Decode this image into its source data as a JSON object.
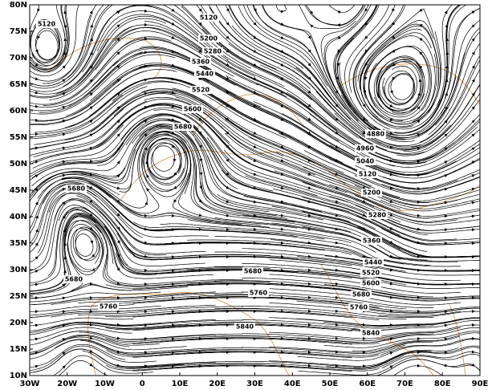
{
  "map": {
    "x_labels": [
      "30W",
      "20W",
      "10W",
      "0",
      "10E",
      "20E",
      "30E",
      "40E",
      "50E",
      "60E",
      "70E",
      "80E",
      "90E"
    ],
    "y_labels": [
      "80N",
      "75N",
      "70N",
      "65N",
      "60N",
      "55N",
      "50N",
      "45N",
      "40N",
      "35N",
      "30N",
      "25N",
      "20N",
      "15N",
      "10N"
    ],
    "contour_labels": [
      5120,
      5120,
      5200,
      5280,
      5360,
      5440,
      5520,
      5600,
      5680,
      5680,
      4880,
      4960,
      5040,
      5120,
      5200,
      5280,
      5360,
      5440,
      5520,
      5600,
      5680,
      5760,
      5840,
      5840,
      5760,
      5680,
      5680,
      5760
    ]
  }
}
